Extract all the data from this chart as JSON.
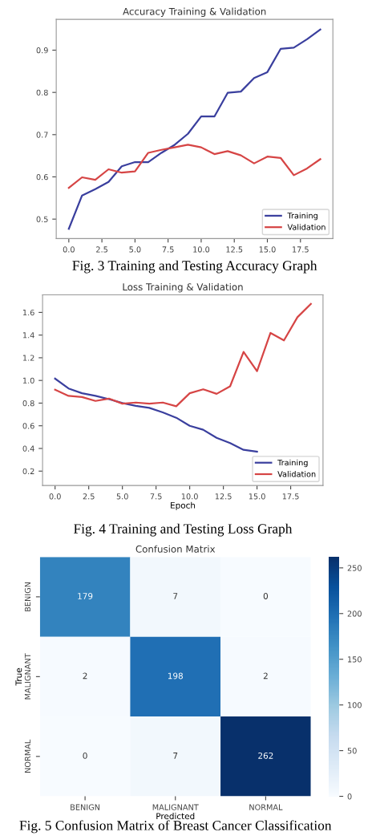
{
  "chart_data": [
    {
      "type": "line",
      "title": "Accuracy Training & Validation",
      "x": [
        0,
        1,
        2,
        3,
        4,
        5,
        6,
        7,
        8,
        9,
        10,
        11,
        12,
        13,
        14,
        15,
        16,
        17,
        18,
        19
      ],
      "series": [
        {
          "name": "Training",
          "color": "#3a3f9e",
          "values": [
            0.477,
            0.556,
            0.571,
            0.588,
            0.625,
            0.635,
            0.635,
            0.657,
            0.676,
            0.702,
            0.743,
            0.743,
            0.799,
            0.802,
            0.834,
            0.848,
            0.903,
            0.906,
            0.926,
            0.949
          ]
        },
        {
          "name": "Validation",
          "color": "#d64545",
          "values": [
            0.574,
            0.599,
            0.593,
            0.618,
            0.61,
            0.613,
            0.657,
            0.664,
            0.67,
            0.676,
            0.67,
            0.654,
            0.661,
            0.651,
            0.632,
            0.648,
            0.645,
            0.604,
            0.62,
            0.642
          ]
        }
      ],
      "xlim": [
        -0.95,
        19.95
      ],
      "ylim": [
        0.454,
        0.973
      ],
      "xticks": [
        {
          "value": 0,
          "label": "0.0"
        },
        2.5,
        {
          "value": 5,
          "label": "5.0"
        },
        7.5,
        {
          "value": 10,
          "label": "10.0"
        },
        12.5,
        {
          "value": 15,
          "label": "15.0"
        },
        17.5
      ],
      "yticks": [
        0.5,
        0.6,
        0.7,
        0.8,
        0.9
      ],
      "legend": "lower right",
      "grid": false,
      "annotations": [
        "Fig. 3 Training and Testing Accuracy Graph"
      ]
    },
    {
      "type": "line",
      "title": "Loss Training & Validation",
      "xlabel": "Epoch",
      "x": [
        0,
        1,
        2,
        3,
        4,
        5,
        6,
        7,
        8,
        9,
        10,
        11,
        12,
        13,
        14,
        15,
        16,
        17,
        18,
        19
      ],
      "series": [
        {
          "name": "Training",
          "color": "#3a3f9e",
          "values": [
            1.016,
            0.929,
            0.887,
            0.864,
            0.835,
            0.8,
            0.776,
            0.758,
            0.718,
            0.671,
            0.6,
            0.565,
            0.494,
            0.447,
            0.388,
            0.372,
            null,
            null,
            null,
            null
          ]
        },
        {
          "name": "Validation",
          "color": "#d64545",
          "values": [
            0.918,
            0.864,
            0.854,
            0.819,
            0.84,
            0.795,
            0.805,
            0.795,
            0.805,
            0.772,
            0.887,
            0.922,
            0.882,
            0.948,
            1.252,
            1.082,
            1.419,
            1.353,
            1.558,
            1.675
          ]
        }
      ],
      "xlim": [
        -0.93,
        19.9
      ],
      "ylim": [
        0.073,
        1.755
      ],
      "xticks": [
        {
          "value": 0,
          "label": "0.0"
        },
        2.5,
        {
          "value": 5,
          "label": "5.0"
        },
        7.5,
        {
          "value": 10,
          "label": "10.0"
        },
        12.5,
        {
          "value": 15,
          "label": "15.0"
        },
        17.5
      ],
      "yticks": [
        0.2,
        0.4,
        0.6,
        0.8,
        {
          "value": 1,
          "label": "1.0"
        },
        1.2,
        1.4,
        1.6
      ],
      "legend": "lower right",
      "grid": false,
      "annotations": [
        "Fig. 4 Training and Testing Loss Graph"
      ]
    },
    {
      "type": "heatmap",
      "title": "Confusion Matrix",
      "xlabel": "Predicted",
      "ylabel": "True",
      "categories": [
        "BENIGN",
        "MALIGNANT",
        "NORMAL"
      ],
      "y_categories": [
        "BENIGN",
        "MALIGNANT",
        "NORMAL"
      ],
      "cells": [
        [
          179,
          7,
          0
        ],
        [
          2,
          198,
          2
        ],
        [
          0,
          7,
          262
        ]
      ],
      "data_labels": true,
      "clim": [
        0,
        262
      ],
      "cticks": [
        0,
        50,
        100,
        150,
        200,
        250
      ],
      "annotations": [
        "Fig. 5 Confusion Matrix of Breast Cancer Classification"
      ]
    }
  ]
}
